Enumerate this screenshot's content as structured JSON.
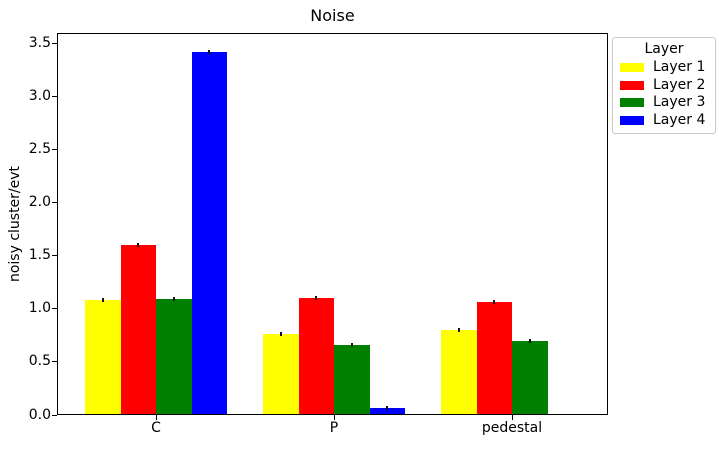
{
  "chart_data": {
    "type": "bar",
    "title": "Noise",
    "xlabel": "",
    "ylabel": "noisy cluster/evt",
    "categories": [
      "C",
      "P",
      "pedestal"
    ],
    "series": [
      {
        "name": "Layer 1",
        "color": "#ffff00",
        "values": [
          1.07,
          0.75,
          0.79
        ]
      },
      {
        "name": "Layer 2",
        "color": "#ff0000",
        "values": [
          1.59,
          1.09,
          1.06
        ]
      },
      {
        "name": "Layer 3",
        "color": "#008000",
        "values": [
          1.08,
          0.65,
          0.69
        ]
      },
      {
        "name": "Layer 4",
        "color": "#0000ff",
        "values": [
          3.41,
          0.06,
          0.0
        ]
      }
    ],
    "yticks": [
      "0.0",
      "0.5",
      "1.0",
      "1.5",
      "2.0",
      "2.5",
      "3.0",
      "3.5"
    ],
    "ylim": [
      0,
      3.6
    ],
    "grid": false,
    "error_bars": {
      "visible": true,
      "approx_error": 0.01
    },
    "legend": {
      "title": "Layer",
      "position": "outside-upper-right"
    },
    "colors": {
      "background": "#ffffff",
      "axis": "#000000",
      "legend_border": "#c9c9c9"
    }
  }
}
